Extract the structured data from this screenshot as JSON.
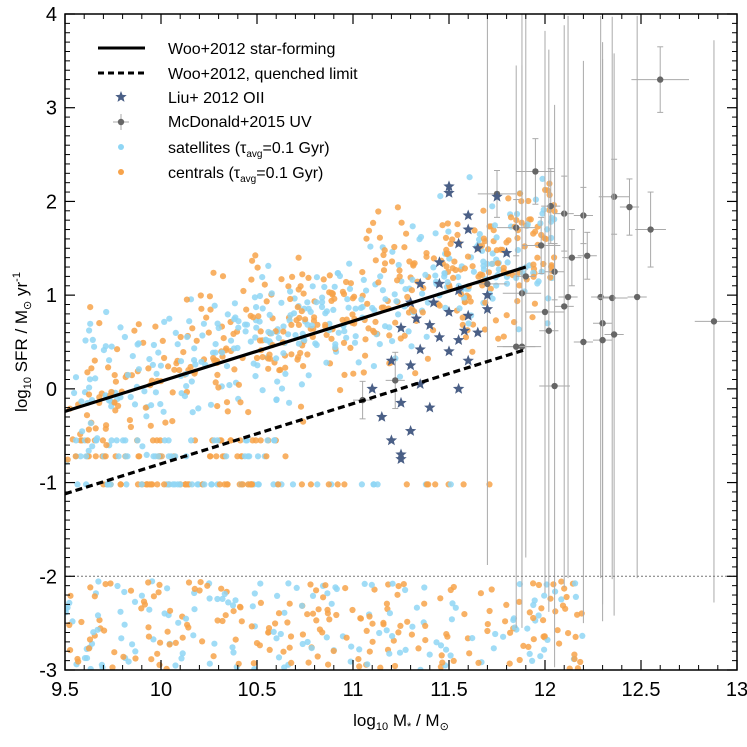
{
  "chart_data": {
    "type": "scatter",
    "xlabel": {
      "main": "log",
      "sub": "10",
      "rest": " M",
      "sub2": "*",
      "tail": " / M",
      "sub3": "⊙"
    },
    "ylabel": {
      "main": "log",
      "sub": "10",
      "rest": " SFR / M",
      "sub2": "⊙",
      "tail": " yr",
      "sup": "-1"
    },
    "xlim": [
      9.5,
      13
    ],
    "ylim": [
      -3,
      4
    ],
    "xticks": [
      "9.5",
      "10",
      "10.5",
      "11",
      "11.5",
      "12",
      "12.5",
      "13"
    ],
    "yticks": [
      "-3",
      "-2",
      "-1",
      "0",
      "1",
      "2",
      "3",
      "4"
    ],
    "x_tick_values": [
      9.5,
      10,
      10.5,
      11,
      11.5,
      12,
      12.5,
      13
    ],
    "y_tick_values": [
      -3,
      -2,
      -1,
      0,
      1,
      2,
      3,
      4
    ],
    "reference_line_y": -2,
    "colors": {
      "satellites": "#8fd6f5",
      "centrals": "#f7a34a",
      "liu": "#4a5f86",
      "mcdonald": "#666666",
      "errorbar": "#aaaaaa"
    },
    "legend": {
      "placement": "top-left",
      "entries": [
        {
          "key": "woo_sf",
          "label": "Woo+2012 star-forming",
          "marker": "solid-line"
        },
        {
          "key": "woo_q",
          "label": "Woo+2012, quenched limit",
          "marker": "dashed-line"
        },
        {
          "key": "liu",
          "label": "Liu+ 2012 OII",
          "marker": "star"
        },
        {
          "key": "mcd",
          "label": "McDonald+2015 UV",
          "marker": "errorbar-point"
        },
        {
          "key": "sat",
          "label_main": "satellites (τ",
          "label_sub": "avg",
          "label_tail": "=0.1 Gyr)",
          "marker": "dot"
        },
        {
          "key": "cen",
          "label_main": "centrals (τ",
          "label_sub": "avg",
          "label_tail": "=0.1 Gyr)",
          "marker": "dot"
        }
      ]
    },
    "series": [
      {
        "name": "Woo+2012 star-forming",
        "kind": "line",
        "style": "solid",
        "x": [
          9.5,
          11.9
        ],
        "y": [
          -0.24,
          1.3
        ]
      },
      {
        "name": "Woo+2012, quenched limit",
        "kind": "line",
        "style": "dashed",
        "x": [
          9.5,
          11.9
        ],
        "y": [
          -1.12,
          0.42
        ]
      },
      {
        "name": "Liu+ 2012 OII",
        "kind": "star",
        "points": [
          [
            11.5,
            2.16
          ],
          [
            11.5,
            2.09
          ],
          [
            11.6,
            1.85
          ],
          [
            11.6,
            1.7
          ],
          [
            11.55,
            1.55
          ],
          [
            11.65,
            1.5
          ],
          [
            11.45,
            1.35
          ],
          [
            11.35,
            1.12
          ],
          [
            11.45,
            1.12
          ],
          [
            11.55,
            1.05
          ],
          [
            11.7,
            1.0
          ],
          [
            11.3,
            0.92
          ],
          [
            11.5,
            0.82
          ],
          [
            11.6,
            0.78
          ],
          [
            11.4,
            0.68
          ],
          [
            11.25,
            0.65
          ],
          [
            11.45,
            0.55
          ],
          [
            11.55,
            0.52
          ],
          [
            11.35,
            0.42
          ],
          [
            11.5,
            0.4
          ],
          [
            11.2,
            0.3
          ],
          [
            11.3,
            0.25
          ],
          [
            11.1,
            0.0
          ],
          [
            11.35,
            0.05
          ],
          [
            11.55,
            0.0
          ],
          [
            11.25,
            -0.15
          ],
          [
            11.4,
            -0.2
          ],
          [
            11.15,
            -0.3
          ],
          [
            11.3,
            -0.45
          ],
          [
            11.2,
            -0.55
          ],
          [
            11.25,
            -0.7
          ],
          [
            11.25,
            -0.75
          ],
          [
            11.6,
            0.3
          ],
          [
            11.65,
            0.6
          ],
          [
            11.7,
            0.85
          ],
          [
            11.8,
            1.45
          ],
          [
            11.75,
            2.05
          ],
          [
            11.42,
            0.92
          ],
          [
            11.58,
            0.62
          ],
          [
            11.33,
            0.75
          ]
        ]
      },
      {
        "name": "McDonald+2015 UV",
        "kind": "errorbar",
        "points": [
          [
            12.6,
            3.3,
            0.15,
            0.35
          ],
          [
            11.95,
            2.32,
            0.1,
            0.35
          ],
          [
            11.75,
            2.08,
            0.1,
            0.25
          ],
          [
            12.03,
            1.95,
            0.05,
            0.4
          ],
          [
            12.1,
            1.87,
            0.05,
            0.4
          ],
          [
            12.36,
            2.05,
            0.08,
            0.4
          ],
          [
            12.44,
            1.94,
            0.05,
            0.3
          ],
          [
            12.55,
            1.7,
            0.08,
            0.4
          ],
          [
            12.2,
            1.85,
            0.05,
            0.3
          ],
          [
            11.85,
            1.72,
            0.1,
            0.3
          ],
          [
            11.98,
            1.53,
            0.1,
            0.3
          ],
          [
            12.14,
            1.4,
            0.05,
            0.3
          ],
          [
            12.22,
            1.42,
            0.05,
            0.25
          ],
          [
            12.05,
            1.25,
            0.05,
            0.3
          ],
          [
            11.7,
            1.12,
            0.1,
            3.0
          ],
          [
            11.9,
            1.2,
            0.05,
            3.0
          ],
          [
            11.88,
            1.02,
            0.1,
            3.0
          ],
          [
            12.12,
            0.98,
            0.05,
            3.0
          ],
          [
            12.29,
            0.98,
            0.05,
            3.0
          ],
          [
            12.35,
            0.97,
            0.08,
            3.0
          ],
          [
            12.48,
            0.98,
            0.05,
            3.0
          ],
          [
            12.0,
            0.82,
            0.1,
            3.0
          ],
          [
            12.1,
            0.88,
            0.05,
            3.0
          ],
          [
            12.3,
            0.7,
            0.05,
            3.0
          ],
          [
            12.2,
            0.5,
            0.05,
            3.0
          ],
          [
            12.36,
            0.58,
            0.05,
            3.0
          ],
          [
            12.02,
            0.62,
            0.05,
            3.0
          ],
          [
            11.88,
            0.45,
            0.1,
            3.0
          ],
          [
            12.05,
            0.03,
            0.08,
            3.0
          ],
          [
            12.3,
            0.52,
            0.05,
            3.0
          ],
          [
            12.88,
            0.72,
            0.1,
            3.0
          ],
          [
            11.05,
            -0.12,
            0.05,
            0.2
          ],
          [
            11.22,
            0.09,
            0.05,
            0.3
          ],
          [
            11.85,
            0.45,
            0.1,
            3.0
          ]
        ]
      },
      {
        "name": "satellites (τavg=0.1 Gyr)",
        "kind": "cloud",
        "color_key": "satellites",
        "seed": 7,
        "count": 560
      },
      {
        "name": "centrals (τavg=0.1 Gyr)",
        "kind": "cloud",
        "color_key": "centrals",
        "seed": 13,
        "count": 680
      }
    ]
  }
}
